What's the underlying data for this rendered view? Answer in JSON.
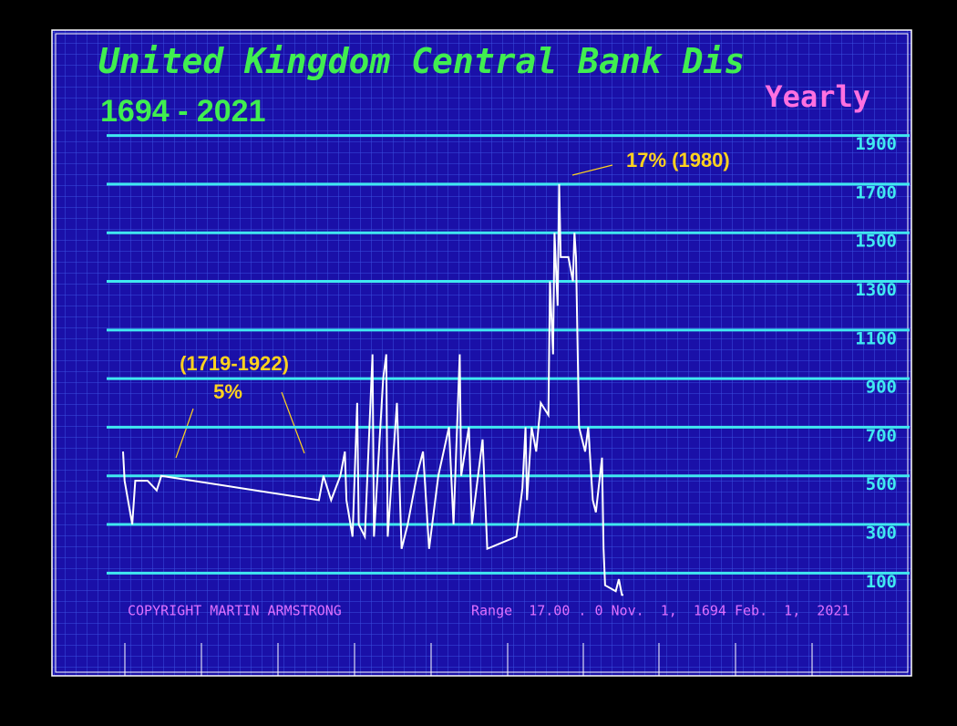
{
  "chart_data": {
    "type": "line",
    "title": "United Kingdom Central Bank Dis",
    "subtitle": "1694 - 2021",
    "frequency": "Yearly",
    "annotations": [
      "17% (1980)",
      "(1719-1922)",
      "5%"
    ],
    "footer_left": "COPYRIGHT MARTIN ARMSTRONG",
    "footer_right": "Range  17.00 . 0 Nov.  1,  1694 Feb.  1,  2021",
    "xlim": [
      1694,
      2021
    ],
    "ylim": [
      0,
      2300
    ],
    "yticks": [
      100,
      300,
      500,
      700,
      900,
      1100,
      1300,
      1500,
      1700,
      1900
    ],
    "grid": true,
    "series": [
      {
        "color": "#ffffff",
        "x": [
          1694,
          1695,
          1700,
          1702,
          1710,
          1716,
          1719,
          1822,
          1825,
          1830,
          1836,
          1839,
          1840,
          1844,
          1847,
          1848,
          1852,
          1857,
          1858,
          1864,
          1866,
          1867,
          1873,
          1876,
          1880,
          1886,
          1890,
          1894,
          1900,
          1907,
          1910,
          1914,
          1915,
          1920,
          1922,
          1929,
          1932,
          1951,
          1955,
          1957,
          1958,
          1961,
          1964,
          1967,
          1972,
          1973,
          1975,
          1976,
          1978,
          1979,
          1980,
          1985,
          1988,
          1989,
          1990,
          1992,
          1996,
          1998,
          2001,
          2003,
          2007,
          2008,
          2009,
          2016,
          2018,
          2020,
          2021
        ],
        "values": [
          600,
          480,
          300,
          480,
          480,
          440,
          500,
          400,
          500,
          400,
          500,
          600,
          400,
          250,
          800,
          300,
          250,
          1000,
          250,
          900,
          1000,
          250,
          800,
          200,
          300,
          500,
          600,
          200,
          500,
          700,
          300,
          1000,
          500,
          700,
          300,
          650,
          200,
          250,
          450,
          700,
          400,
          700,
          600,
          800,
          750,
          1300,
          1000,
          1500,
          1200,
          1700,
          1400,
          1400,
          1300,
          1500,
          1400,
          700,
          600,
          700,
          400,
          350,
          575,
          200,
          50,
          25,
          75,
          10,
          10
        ]
      }
    ]
  }
}
